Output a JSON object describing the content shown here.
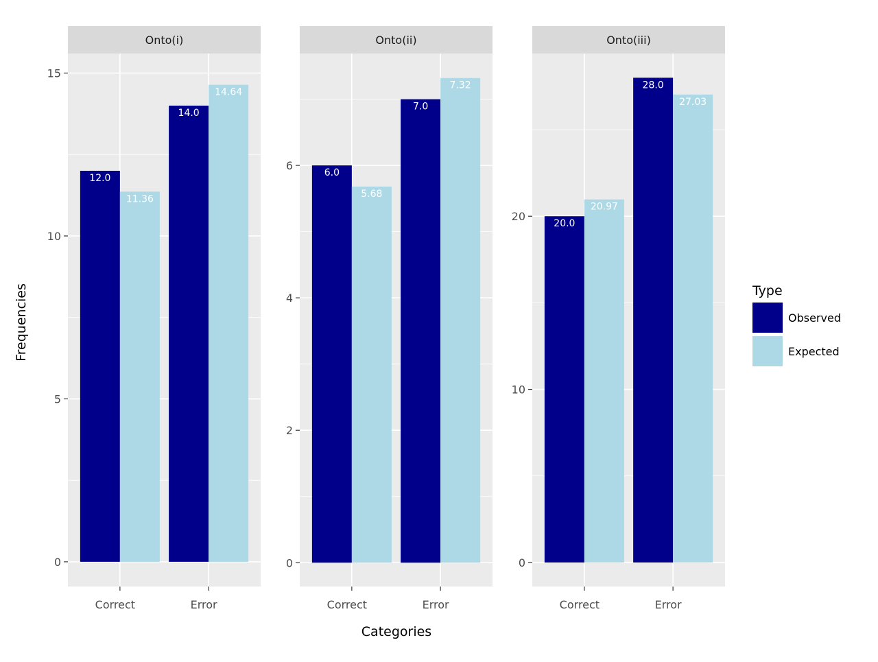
{
  "chart_data": {
    "type": "bar",
    "xlabel": "Categories",
    "ylabel": "Frequencies",
    "categories": [
      "Correct",
      "Error"
    ],
    "legend": {
      "title": "Type",
      "position": "right",
      "entries": [
        {
          "name": "Observed",
          "color": "#00008b"
        },
        {
          "name": "Expected",
          "color": "#add8e6"
        }
      ]
    },
    "panels": [
      {
        "title": "Onto(i)",
        "ylim": [
          -0.76,
          15.6
        ],
        "yticks": [
          "0",
          "5",
          "10",
          "15"
        ],
        "series": [
          {
            "name": "Observed",
            "values": [
              12.0,
              14.0
            ],
            "labels": [
              "12.0",
              "14.0"
            ]
          },
          {
            "name": "Expected",
            "values": [
              11.36,
              14.64
            ],
            "labels": [
              "11.36",
              "14.64"
            ]
          }
        ]
      },
      {
        "title": "Onto(ii)",
        "ylim": [
          -0.36,
          7.69
        ],
        "yticks": [
          "0",
          "2",
          "4",
          "6"
        ],
        "series": [
          {
            "name": "Observed",
            "values": [
              6.0,
              7.0
            ],
            "labels": [
              "6.0",
              "7.0"
            ]
          },
          {
            "name": "Expected",
            "values": [
              5.68,
              7.32
            ],
            "labels": [
              "5.68",
              "7.32"
            ]
          }
        ]
      },
      {
        "title": "Onto(iii)",
        "ylim": [
          -1.39,
          29.4
        ],
        "yticks": [
          "0",
          "10",
          "20"
        ],
        "series": [
          {
            "name": "Observed",
            "values": [
              20.0,
              28.0
            ],
            "labels": [
              "20.0",
              "28.0"
            ]
          },
          {
            "name": "Expected",
            "values": [
              20.97,
              27.03
            ],
            "labels": [
              "20.97",
              "27.03"
            ]
          }
        ]
      }
    ],
    "grid": true
  }
}
